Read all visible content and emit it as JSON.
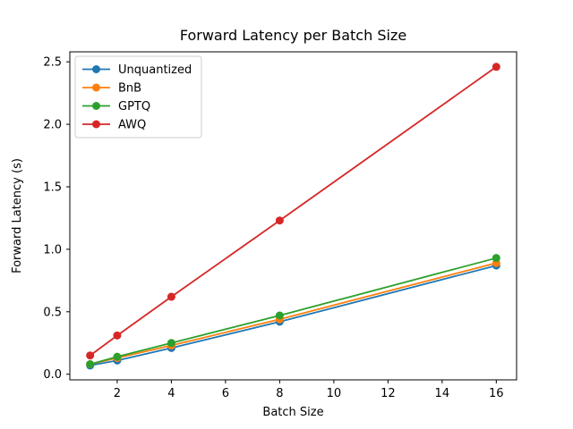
{
  "figure": {
    "background": "#ffffff"
  },
  "chart_data": {
    "type": "line",
    "title": "Forward Latency per Batch Size",
    "xlabel": "Batch Size",
    "ylabel": "Forward Latency (s)",
    "x": [
      1,
      2,
      4,
      8,
      16
    ],
    "series": [
      {
        "name": "Unquantized",
        "color": "#1f77b4",
        "values": [
          0.07,
          0.11,
          0.21,
          0.42,
          0.87
        ]
      },
      {
        "name": "BnB",
        "color": "#ff7f0e",
        "values": [
          0.08,
          0.13,
          0.23,
          0.44,
          0.89
        ]
      },
      {
        "name": "GPTQ",
        "color": "#2ca02c",
        "values": [
          0.08,
          0.14,
          0.25,
          0.47,
          0.93
        ]
      },
      {
        "name": "AWQ",
        "color": "#d62728",
        "values": [
          0.15,
          0.31,
          0.62,
          1.23,
          2.46
        ]
      }
    ],
    "xlim": [
      0.25,
      16.75
    ],
    "ylim": [
      -0.045,
      2.58
    ],
    "xticks": [
      2,
      4,
      6,
      8,
      10,
      12,
      14,
      16
    ],
    "xtick_labels": [
      "2",
      "4",
      "6",
      "8",
      "10",
      "12",
      "14",
      "16"
    ],
    "yticks": [
      0.0,
      0.5,
      1.0,
      1.5,
      2.0,
      2.5
    ],
    "ytick_labels": [
      "0.0",
      "0.5",
      "1.0",
      "1.5",
      "2.0",
      "2.5"
    ],
    "grid": false,
    "legend_position": "upper-left",
    "marker": "circle",
    "axis_color": "#000000",
    "legend_border_color": "#cccccc",
    "legend_background": "#ffffff"
  }
}
